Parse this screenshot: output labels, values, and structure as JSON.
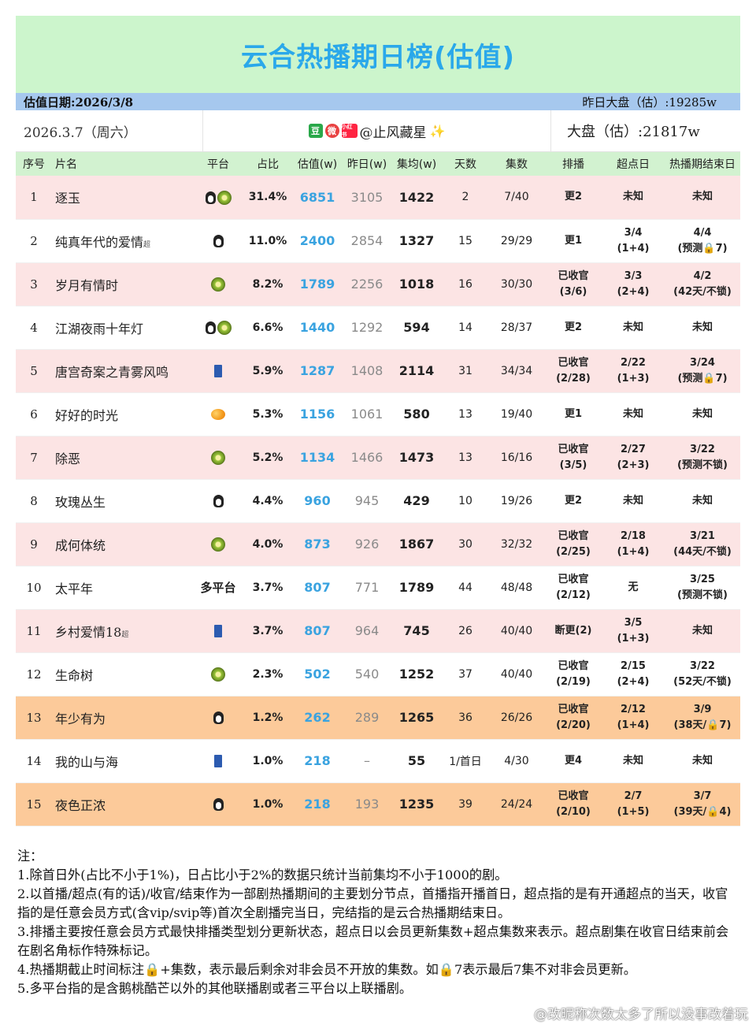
{
  "title": "云合热播期日榜(估值)",
  "date_bar": {
    "left": "估值日期:2026/3/8",
    "right": "昨日大盘（估）:19285w"
  },
  "info": {
    "date": "2026.3.7（周六）",
    "badges": [
      "豆",
      "微",
      "小红书"
    ],
    "author": "@止风藏星",
    "sparkle": "✨",
    "total": "大盘（估）:21817w"
  },
  "headers": [
    "序号",
    "片名",
    "平台",
    "占比",
    "估值(w)",
    "昨日(w)",
    "集均(w)",
    "天数",
    "集数",
    "排播",
    "超点日",
    "热播期结束日"
  ],
  "rows": [
    {
      "rank": "1",
      "name": "逐玉",
      "sup": "",
      "platform": [
        "penguin-icon",
        "kiwi-icon"
      ],
      "platform_text": "",
      "share": "31.4%",
      "est": "6851",
      "yest": "3105",
      "avg": "1422",
      "days": "2",
      "eps": "7/40",
      "sched": [
        "更2"
      ],
      "peak": [
        "未知"
      ],
      "end": [
        "未知"
      ],
      "bg": "pink"
    },
    {
      "rank": "2",
      "name": "纯真年代的爱情",
      "sup": "超",
      "platform": [
        "penguin-icon"
      ],
      "platform_text": "",
      "share": "11.0%",
      "est": "2400",
      "yest": "2854",
      "avg": "1327",
      "days": "15",
      "eps": "29/29",
      "sched": [
        "更1"
      ],
      "peak": [
        "3/4",
        "(1+4)"
      ],
      "end": [
        "4/4",
        "(预测🔒7)"
      ],
      "bg": "white"
    },
    {
      "rank": "3",
      "name": "岁月有情时",
      "sup": "",
      "platform": [
        "kiwi-icon"
      ],
      "platform_text": "",
      "share": "8.2%",
      "est": "1789",
      "yest": "2256",
      "avg": "1018",
      "days": "16",
      "eps": "30/30",
      "sched": [
        "已收官",
        "(3/6)"
      ],
      "peak": [
        "3/3",
        "(2+4)"
      ],
      "end": [
        "4/2",
        "(42天/不锁)"
      ],
      "bg": "pink"
    },
    {
      "rank": "4",
      "name": "江湖夜雨十年灯",
      "sup": "",
      "platform": [
        "penguin-icon",
        "kiwi-icon"
      ],
      "platform_text": "",
      "share": "6.6%",
      "est": "1440",
      "yest": "1292",
      "avg": "594",
      "days": "14",
      "eps": "28/37",
      "sched": [
        "更2"
      ],
      "peak": [
        "未知"
      ],
      "end": [
        "未知"
      ],
      "bg": "white"
    },
    {
      "rank": "5",
      "name": "唐宫奇案之青雾风鸣",
      "sup": "",
      "platform": [
        "jeans-icon"
      ],
      "platform_text": "",
      "share": "5.9%",
      "est": "1287",
      "yest": "1408",
      "avg": "2114",
      "days": "31",
      "eps": "34/34",
      "sched": [
        "已收官",
        "(2/28)"
      ],
      "peak": [
        "2/22",
        "(1+3)"
      ],
      "end": [
        "3/24",
        "(预测🔒7)"
      ],
      "bg": "pink"
    },
    {
      "rank": "6",
      "name": "好好的时光",
      "sup": "",
      "platform": [
        "mango-icon"
      ],
      "platform_text": "",
      "share": "5.3%",
      "est": "1156",
      "yest": "1061",
      "avg": "580",
      "days": "13",
      "eps": "19/40",
      "sched": [
        "更1"
      ],
      "peak": [
        "未知"
      ],
      "end": [
        "未知"
      ],
      "bg": "white"
    },
    {
      "rank": "7",
      "name": "除恶",
      "sup": "",
      "platform": [
        "kiwi-icon"
      ],
      "platform_text": "",
      "share": "5.2%",
      "est": "1134",
      "yest": "1466",
      "avg": "1473",
      "days": "13",
      "eps": "16/16",
      "sched": [
        "已收官",
        "(3/5)"
      ],
      "peak": [
        "2/27",
        "(2+3)"
      ],
      "end": [
        "3/22",
        "(预测不锁)"
      ],
      "bg": "pink"
    },
    {
      "rank": "8",
      "name": "玫瑰丛生",
      "sup": "",
      "platform": [
        "penguin-icon"
      ],
      "platform_text": "",
      "share": "4.4%",
      "est": "960",
      "yest": "945",
      "avg": "429",
      "days": "10",
      "eps": "19/26",
      "sched": [
        "更2"
      ],
      "peak": [
        "未知"
      ],
      "end": [
        "未知"
      ],
      "bg": "white"
    },
    {
      "rank": "9",
      "name": "成何体统",
      "sup": "",
      "platform": [
        "kiwi-icon"
      ],
      "platform_text": "",
      "share": "4.0%",
      "est": "873",
      "yest": "926",
      "avg": "1867",
      "days": "30",
      "eps": "32/32",
      "sched": [
        "已收官",
        "(2/25)"
      ],
      "peak": [
        "2/18",
        "(1+4)"
      ],
      "end": [
        "3/21",
        "(44天/不锁)"
      ],
      "bg": "pink"
    },
    {
      "rank": "10",
      "name": "太平年",
      "sup": "",
      "platform": [],
      "platform_text": "多平台",
      "share": "3.7%",
      "est": "807",
      "yest": "771",
      "avg": "1789",
      "days": "44",
      "eps": "48/48",
      "sched": [
        "已收官",
        "(2/12)"
      ],
      "peak": [
        "无"
      ],
      "end": [
        "3/25",
        "(预测不锁)"
      ],
      "bg": "white"
    },
    {
      "rank": "11",
      "name": "乡村爱情18",
      "sup": "超",
      "platform": [
        "jeans-icon"
      ],
      "platform_text": "",
      "share": "3.7%",
      "est": "807",
      "yest": "964",
      "avg": "745",
      "days": "26",
      "eps": "40/40",
      "sched": [
        "断更(2)"
      ],
      "peak": [
        "3/5",
        "(1+3)"
      ],
      "end": [
        "未知"
      ],
      "bg": "pink"
    },
    {
      "rank": "12",
      "name": "生命树",
      "sup": "",
      "platform": [
        "kiwi-icon"
      ],
      "platform_text": "",
      "share": "2.3%",
      "est": "502",
      "yest": "540",
      "avg": "1252",
      "days": "37",
      "eps": "40/40",
      "sched": [
        "已收官",
        "(2/19)"
      ],
      "peak": [
        "2/15",
        "(2+4)"
      ],
      "end": [
        "3/22",
        "(52天/不锁)"
      ],
      "bg": "white"
    },
    {
      "rank": "13",
      "name": "年少有为",
      "sup": "",
      "platform": [
        "penguin-icon"
      ],
      "platform_text": "",
      "share": "1.2%",
      "est": "262",
      "yest": "289",
      "avg": "1265",
      "days": "36",
      "eps": "26/26",
      "sched": [
        "已收官",
        "(2/20)"
      ],
      "peak": [
        "2/12",
        "(1+4)"
      ],
      "end": [
        "3/9",
        "(38天/🔒7)"
      ],
      "bg": "orange"
    },
    {
      "rank": "14",
      "name": "我的山与海",
      "sup": "",
      "platform": [
        "jeans-icon"
      ],
      "platform_text": "",
      "share": "1.0%",
      "est": "218",
      "yest": "–",
      "avg": "55",
      "days": "1/首日",
      "eps": "4/30",
      "sched": [
        "更4"
      ],
      "peak": [
        "未知"
      ],
      "end": [
        "未知"
      ],
      "bg": "white"
    },
    {
      "rank": "15",
      "name": "夜色正浓",
      "sup": "",
      "platform": [
        "penguin-icon"
      ],
      "platform_text": "",
      "share": "1.0%",
      "est": "218",
      "yest": "193",
      "avg": "1235",
      "days": "39",
      "eps": "24/24",
      "sched": [
        "已收官",
        "(2/10)"
      ],
      "peak": [
        "2/7",
        "(1+5)"
      ],
      "end": [
        "3/7",
        "(39天/🔒4)"
      ],
      "bg": "orange"
    }
  ],
  "notes": [
    "注：",
    "1.除首日外(占比不小于1%)，日占比小于2%的数据只统计当前集均不小于1000的剧。",
    "2.以首播/超点(有的话)/收官/结束作为一部剧热播期间的主要划分节点，首播指开播首日，超点指的是有开通超点的当天，收官指的是任意会员方式(含vip/svip等)首次全剧播完当日，完结指的是云合热播期结束日。",
    "3.排播主要按任意会员方式最快排播类型划分更新状态，超点日以会员更新集数+超点集数来表示。超点剧集在收官日结束前会在剧名角标作特殊标记。",
    "4.热播期截止时间标注🔒+集数，表示最后剩余对非会员不开放的集数。如🔒7表示最后7集不对非会员更新。",
    "5.多平台指的是含鹅桃酷芒以外的其他联播剧或者三平台以上联播剧。"
  ],
  "watermark": "@改昵称次数太多了所以没事改着玩"
}
